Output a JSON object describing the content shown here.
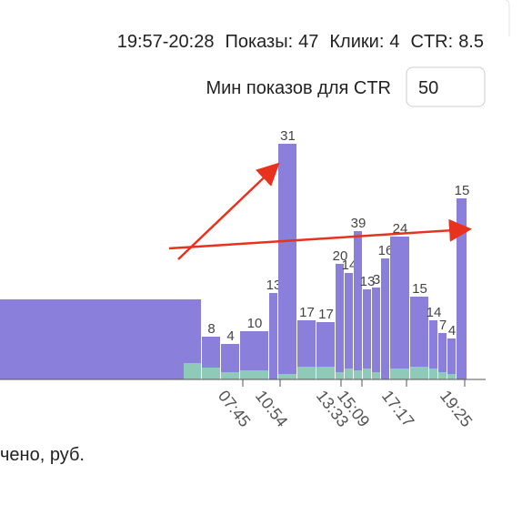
{
  "header": {
    "time_range": "19:57-20:28",
    "impressions_label": "Показы:",
    "impressions": 47,
    "clicks_label": "Клики:",
    "clicks": 4,
    "ctr_label": "CTR:",
    "ctr": 8.5
  },
  "min_impressions": {
    "label": "Мин показов для CTR",
    "value": 50
  },
  "chart_data": {
    "type": "bar",
    "bar_labels": [
      null,
      "8",
      "4",
      "10",
      "13",
      "31",
      "17",
      "17",
      "20",
      "14",
      "39",
      "13",
      "3",
      "16",
      "24",
      "15",
      "14",
      "7",
      "4",
      "15"
    ],
    "bar_widths": [
      222,
      21,
      21,
      32,
      10,
      21,
      21,
      21,
      10,
      10,
      10,
      10,
      10,
      10,
      22,
      21,
      10,
      10,
      10,
      12
    ],
    "values": [
      88,
      47,
      39,
      53,
      95,
      259,
      65,
      63,
      127,
      117,
      163,
      99,
      101,
      133,
      157,
      91,
      65,
      51,
      45,
      199
    ],
    "color": "#8a7fdb",
    "secondary_values": [
      18,
      13,
      8,
      10,
      0,
      6,
      14,
      14,
      8,
      12,
      10,
      12,
      8,
      0,
      12,
      14,
      12,
      8,
      6,
      0
    ],
    "secondary_color": "#8fd6b0",
    "xtick_labels": [
      "07:45",
      "10:54",
      "13:33",
      "15:09",
      "17:17",
      "19:25"
    ]
  },
  "footer_text": "чено, руб."
}
